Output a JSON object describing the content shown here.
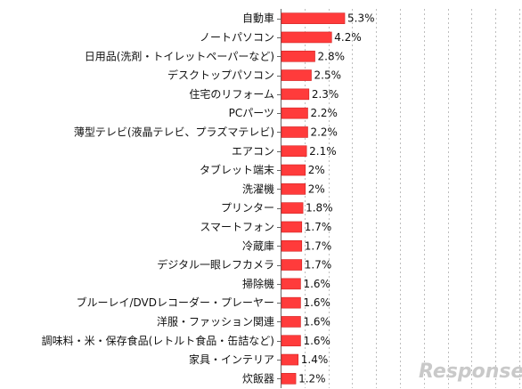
{
  "chart_data": {
    "type": "bar",
    "orientation": "horizontal",
    "categories": [
      "自動車",
      "ノートパソコン",
      "日用品(洗剤・トイレットペーパーなど)",
      "デスクトップパソコン",
      "住宅のリフォーム",
      "PCパーツ",
      "薄型テレビ(液晶テレビ、プラズマテレビ)",
      "エアコン",
      "タブレット端末",
      "洗濯機",
      "プリンター",
      "スマートフォン",
      "冷蔵庫",
      "デジタル一眼レフカメラ",
      "掃除機",
      "ブルーレイ/DVDレコーダー・プレーヤー",
      "洋服・ファッション関連",
      "調味料・米・保存食品(レトルト食品・缶詰など)",
      "家具・インテリア",
      "炊飯器"
    ],
    "values": [
      5.3,
      4.2,
      2.8,
      2.5,
      2.3,
      2.2,
      2.2,
      2.1,
      2,
      2,
      1.8,
      1.7,
      1.7,
      1.7,
      1.6,
      1.6,
      1.6,
      1.6,
      1.4,
      1.2
    ],
    "value_labels": [
      "5.3%",
      "4.2%",
      "2.8%",
      "2.5%",
      "2.3%",
      "2.2%",
      "2.2%",
      "2.1%",
      "2%",
      "2%",
      "1.8%",
      "1.7%",
      "1.7%",
      "1.7%",
      "1.6%",
      "1.6%",
      "1.6%",
      "1.6%",
      "1.4%",
      "1.2%"
    ],
    "xlim": [
      0,
      20
    ],
    "grid": true,
    "bar_color": "#ff3b3b",
    "title": "",
    "xlabel": "",
    "ylabel": ""
  },
  "watermark": "Response."
}
